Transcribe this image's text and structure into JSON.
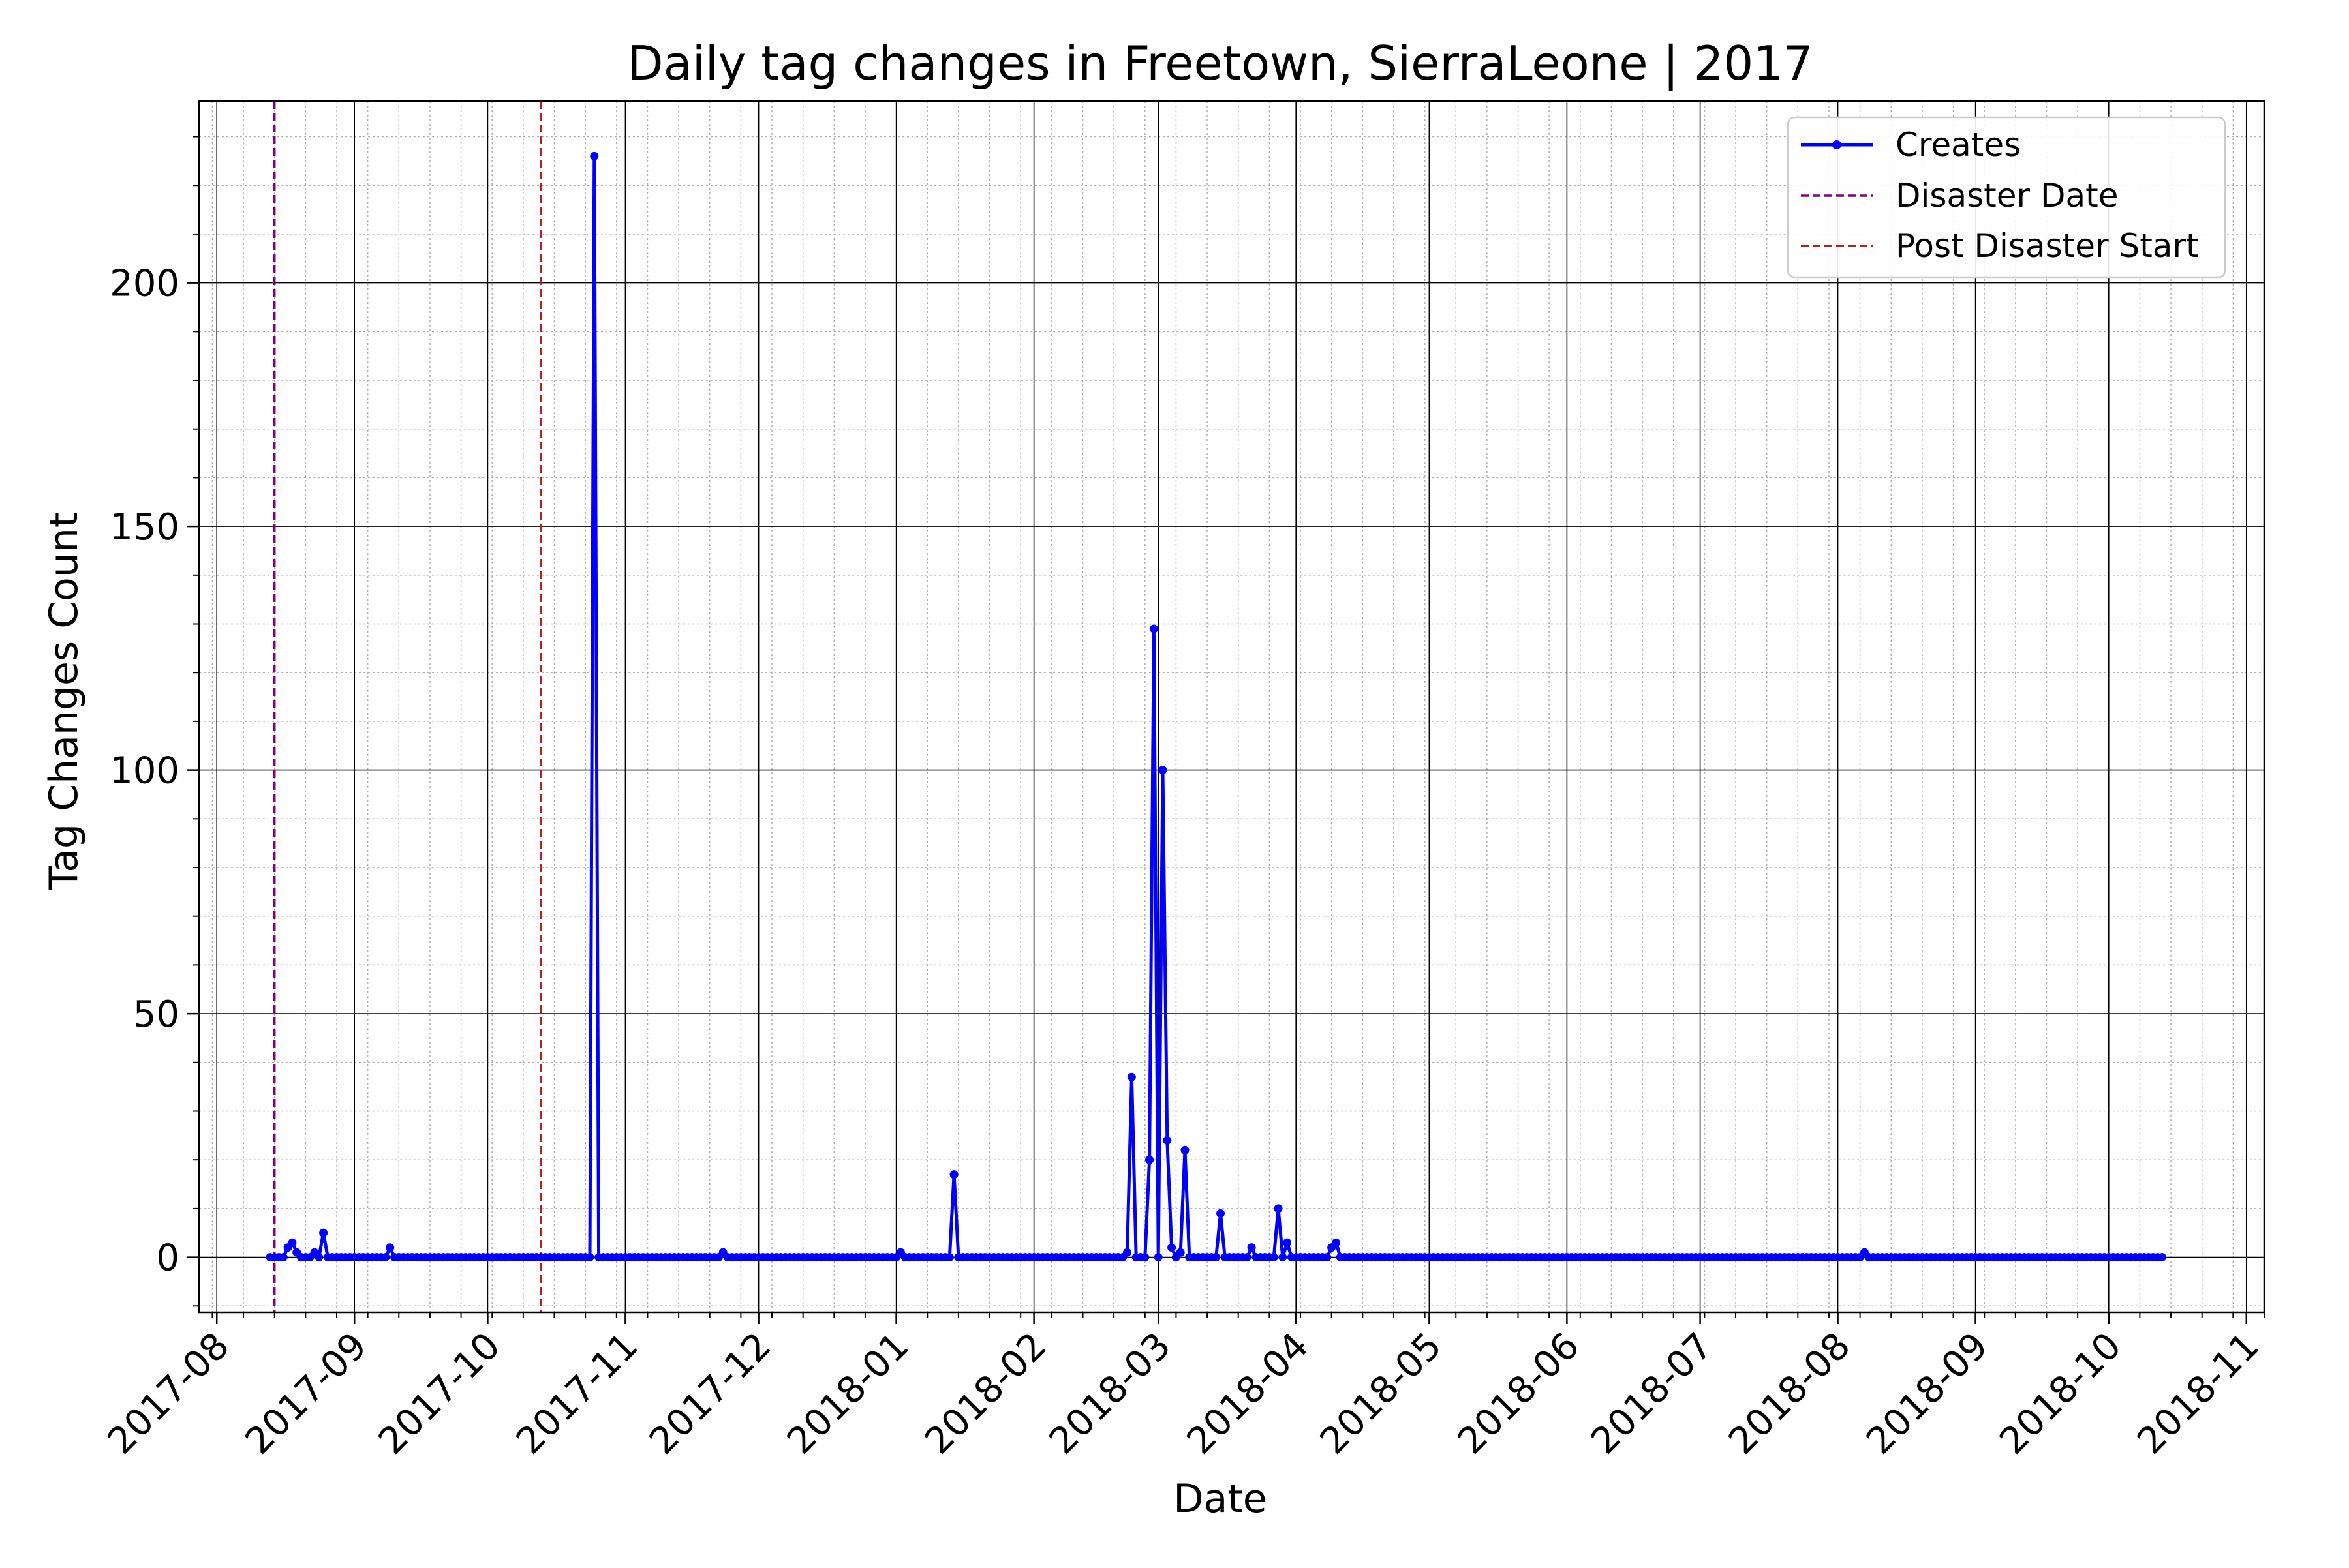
{
  "chart_data": {
    "type": "line",
    "title": "Daily tag changes in Freetown, SierraLeone | 2017",
    "xlabel": "Date",
    "ylabel": "Tag Changes Count",
    "x_range": [
      "2017-07-28",
      "2018-11-05"
    ],
    "ylim": [
      -11.3,
      237.3
    ],
    "y_ticks": [
      0,
      50,
      100,
      150,
      200
    ],
    "x_ticks": [
      "2017-08",
      "2017-09",
      "2017-10",
      "2017-11",
      "2017-12",
      "2018-01",
      "2018-02",
      "2018-03",
      "2018-04",
      "2018-05",
      "2018-06",
      "2018-07",
      "2018-08",
      "2018-09",
      "2018-10",
      "2018-11"
    ],
    "grid": "major and minor",
    "legend_position": "top-right",
    "vlines": [
      {
        "name": "Disaster Date",
        "x": "2017-08-14",
        "color": "#800080"
      },
      {
        "name": "Post Disaster Start",
        "x": "2017-10-13",
        "color": "#b22222"
      }
    ],
    "series": [
      {
        "name": "Creates",
        "color": "#0000ff",
        "start": "2017-08-13",
        "end": "2018-10-13",
        "baseline": 0,
        "points": [
          [
            "2017-08-17",
            2
          ],
          [
            "2017-08-18",
            3
          ],
          [
            "2017-08-19",
            1
          ],
          [
            "2017-08-23",
            1
          ],
          [
            "2017-08-25",
            5
          ],
          [
            "2017-09-09",
            2
          ],
          [
            "2017-10-25",
            226
          ],
          [
            "2017-11-23",
            1
          ],
          [
            "2018-01-02",
            1
          ],
          [
            "2018-01-14",
            17
          ],
          [
            "2018-02-22",
            1
          ],
          [
            "2018-02-23",
            37
          ],
          [
            "2018-02-27",
            20
          ],
          [
            "2018-02-28",
            129
          ],
          [
            "2018-03-02",
            100
          ],
          [
            "2018-03-03",
            24
          ],
          [
            "2018-03-04",
            2
          ],
          [
            "2018-03-06",
            1
          ],
          [
            "2018-03-07",
            22
          ],
          [
            "2018-03-15",
            9
          ],
          [
            "2018-03-22",
            2
          ],
          [
            "2018-03-28",
            10
          ],
          [
            "2018-03-30",
            3
          ],
          [
            "2018-04-09",
            2
          ],
          [
            "2018-04-10",
            3
          ],
          [
            "2018-08-07",
            1
          ]
        ]
      }
    ]
  }
}
